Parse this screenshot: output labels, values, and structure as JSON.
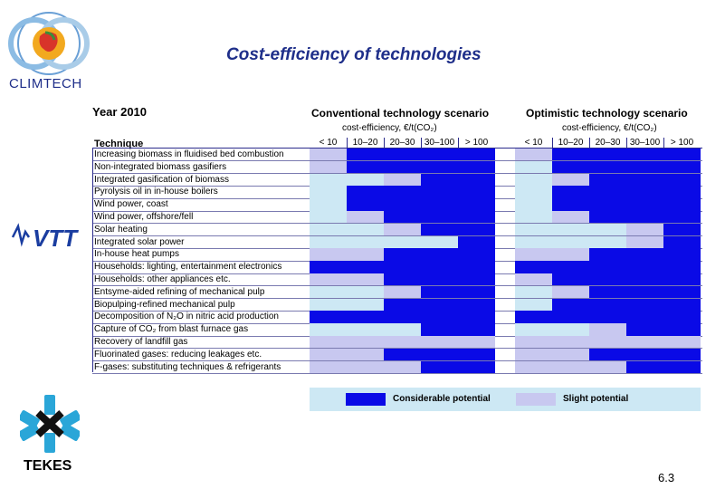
{
  "page": {
    "title": "Cost-efficiency of technologies",
    "brand": "CLIMTECH",
    "tekes_label": "TEKES",
    "page_number": "6.3"
  },
  "colors": {
    "considerable": "#0a0ae6",
    "slight": "#c8c8f0",
    "empty_conv": "#cde8f4",
    "empty_opt": "#cde8f4",
    "title": "#1f2f8a"
  },
  "table": {
    "year": "Year 2010",
    "technique_header": "Technique",
    "conventional": {
      "title": "Conventional technology scenario",
      "subtitle": "cost-efficiency, €/t(CO₂)",
      "ranges": [
        "< 10",
        "10–20",
        "20–30",
        "30–100",
        "> 100"
      ]
    },
    "optimistic": {
      "title": "Optimistic technology scenario",
      "subtitle": "cost-efficiency, €/t(CO₂)",
      "ranges": [
        "< 10",
        "10–20",
        "20–30",
        "30–100",
        "> 100"
      ]
    },
    "rows": [
      {
        "label": "Increasing biomass in fluidised bed combustion",
        "conv": [
          1,
          2,
          2,
          2,
          2
        ],
        "opt": [
          1,
          2,
          2,
          2,
          2
        ]
      },
      {
        "label": "Non-integrated biomass gasifiers",
        "conv": [
          1,
          2,
          2,
          2,
          2
        ],
        "opt": [
          0,
          2,
          2,
          2,
          2
        ]
      },
      {
        "label": "Integrated gasification of biomass",
        "conv": [
          0,
          0,
          1,
          2,
          2
        ],
        "opt": [
          0,
          1,
          2,
          2,
          2
        ]
      },
      {
        "label": "Pyrolysis oil in in-house boilers",
        "conv": [
          0,
          2,
          2,
          2,
          2
        ],
        "opt": [
          0,
          2,
          2,
          2,
          2
        ]
      },
      {
        "label": "Wind power, coast",
        "conv": [
          0,
          2,
          2,
          2,
          2
        ],
        "opt": [
          0,
          2,
          2,
          2,
          2
        ]
      },
      {
        "label": "Wind power, offshore/fell",
        "conv": [
          0,
          1,
          2,
          2,
          2
        ],
        "opt": [
          0,
          1,
          2,
          2,
          2
        ]
      },
      {
        "label": "Solar heating",
        "conv": [
          0,
          0,
          1,
          2,
          2
        ],
        "opt": [
          0,
          0,
          0,
          1,
          2
        ]
      },
      {
        "label": "Integrated solar power",
        "conv": [
          0,
          0,
          0,
          0,
          2
        ],
        "opt": [
          0,
          0,
          0,
          1,
          2
        ]
      },
      {
        "label": "In-house heat pumps",
        "conv": [
          1,
          1,
          2,
          2,
          2
        ],
        "opt": [
          1,
          1,
          2,
          2,
          2
        ]
      },
      {
        "label": "Households: lighting, entertainment electronics",
        "conv": [
          2,
          2,
          2,
          2,
          2
        ],
        "opt": [
          2,
          2,
          2,
          2,
          2
        ]
      },
      {
        "label": "Households: other appliances etc.",
        "conv": [
          1,
          1,
          2,
          2,
          2
        ],
        "opt": [
          1,
          2,
          2,
          2,
          2
        ]
      },
      {
        "label": "Entsyme-aided refining of mechanical pulp",
        "conv": [
          0,
          0,
          1,
          2,
          2
        ],
        "opt": [
          0,
          1,
          2,
          2,
          2
        ]
      },
      {
        "label": "Biopulping-refined mechanical pulp",
        "conv": [
          0,
          0,
          2,
          2,
          2
        ],
        "opt": [
          0,
          2,
          2,
          2,
          2
        ]
      },
      {
        "label": "Decomposition of N₂O in nitric acid production",
        "conv": [
          2,
          2,
          2,
          2,
          2
        ],
        "opt": [
          2,
          2,
          2,
          2,
          2
        ]
      },
      {
        "label": "Capture of CO₂ from blast furnace gas",
        "conv": [
          0,
          0,
          0,
          2,
          2
        ],
        "opt": [
          0,
          0,
          1,
          2,
          2
        ]
      },
      {
        "label": "Recovery of landfill gas",
        "conv": [
          1,
          1,
          1,
          1,
          1
        ],
        "opt": [
          1,
          1,
          1,
          1,
          1
        ]
      },
      {
        "label": "Fluorinated gases: reducing leakages etc.",
        "conv": [
          1,
          1,
          2,
          2,
          2
        ],
        "opt": [
          1,
          1,
          2,
          2,
          2
        ]
      },
      {
        "label": "F-gases: substituting techniques & refrigerants",
        "conv": [
          1,
          1,
          1,
          2,
          2
        ],
        "opt": [
          1,
          1,
          1,
          2,
          2
        ]
      }
    ]
  },
  "legend": {
    "considerable": "Considerable potential",
    "slight": "Slight potential"
  }
}
